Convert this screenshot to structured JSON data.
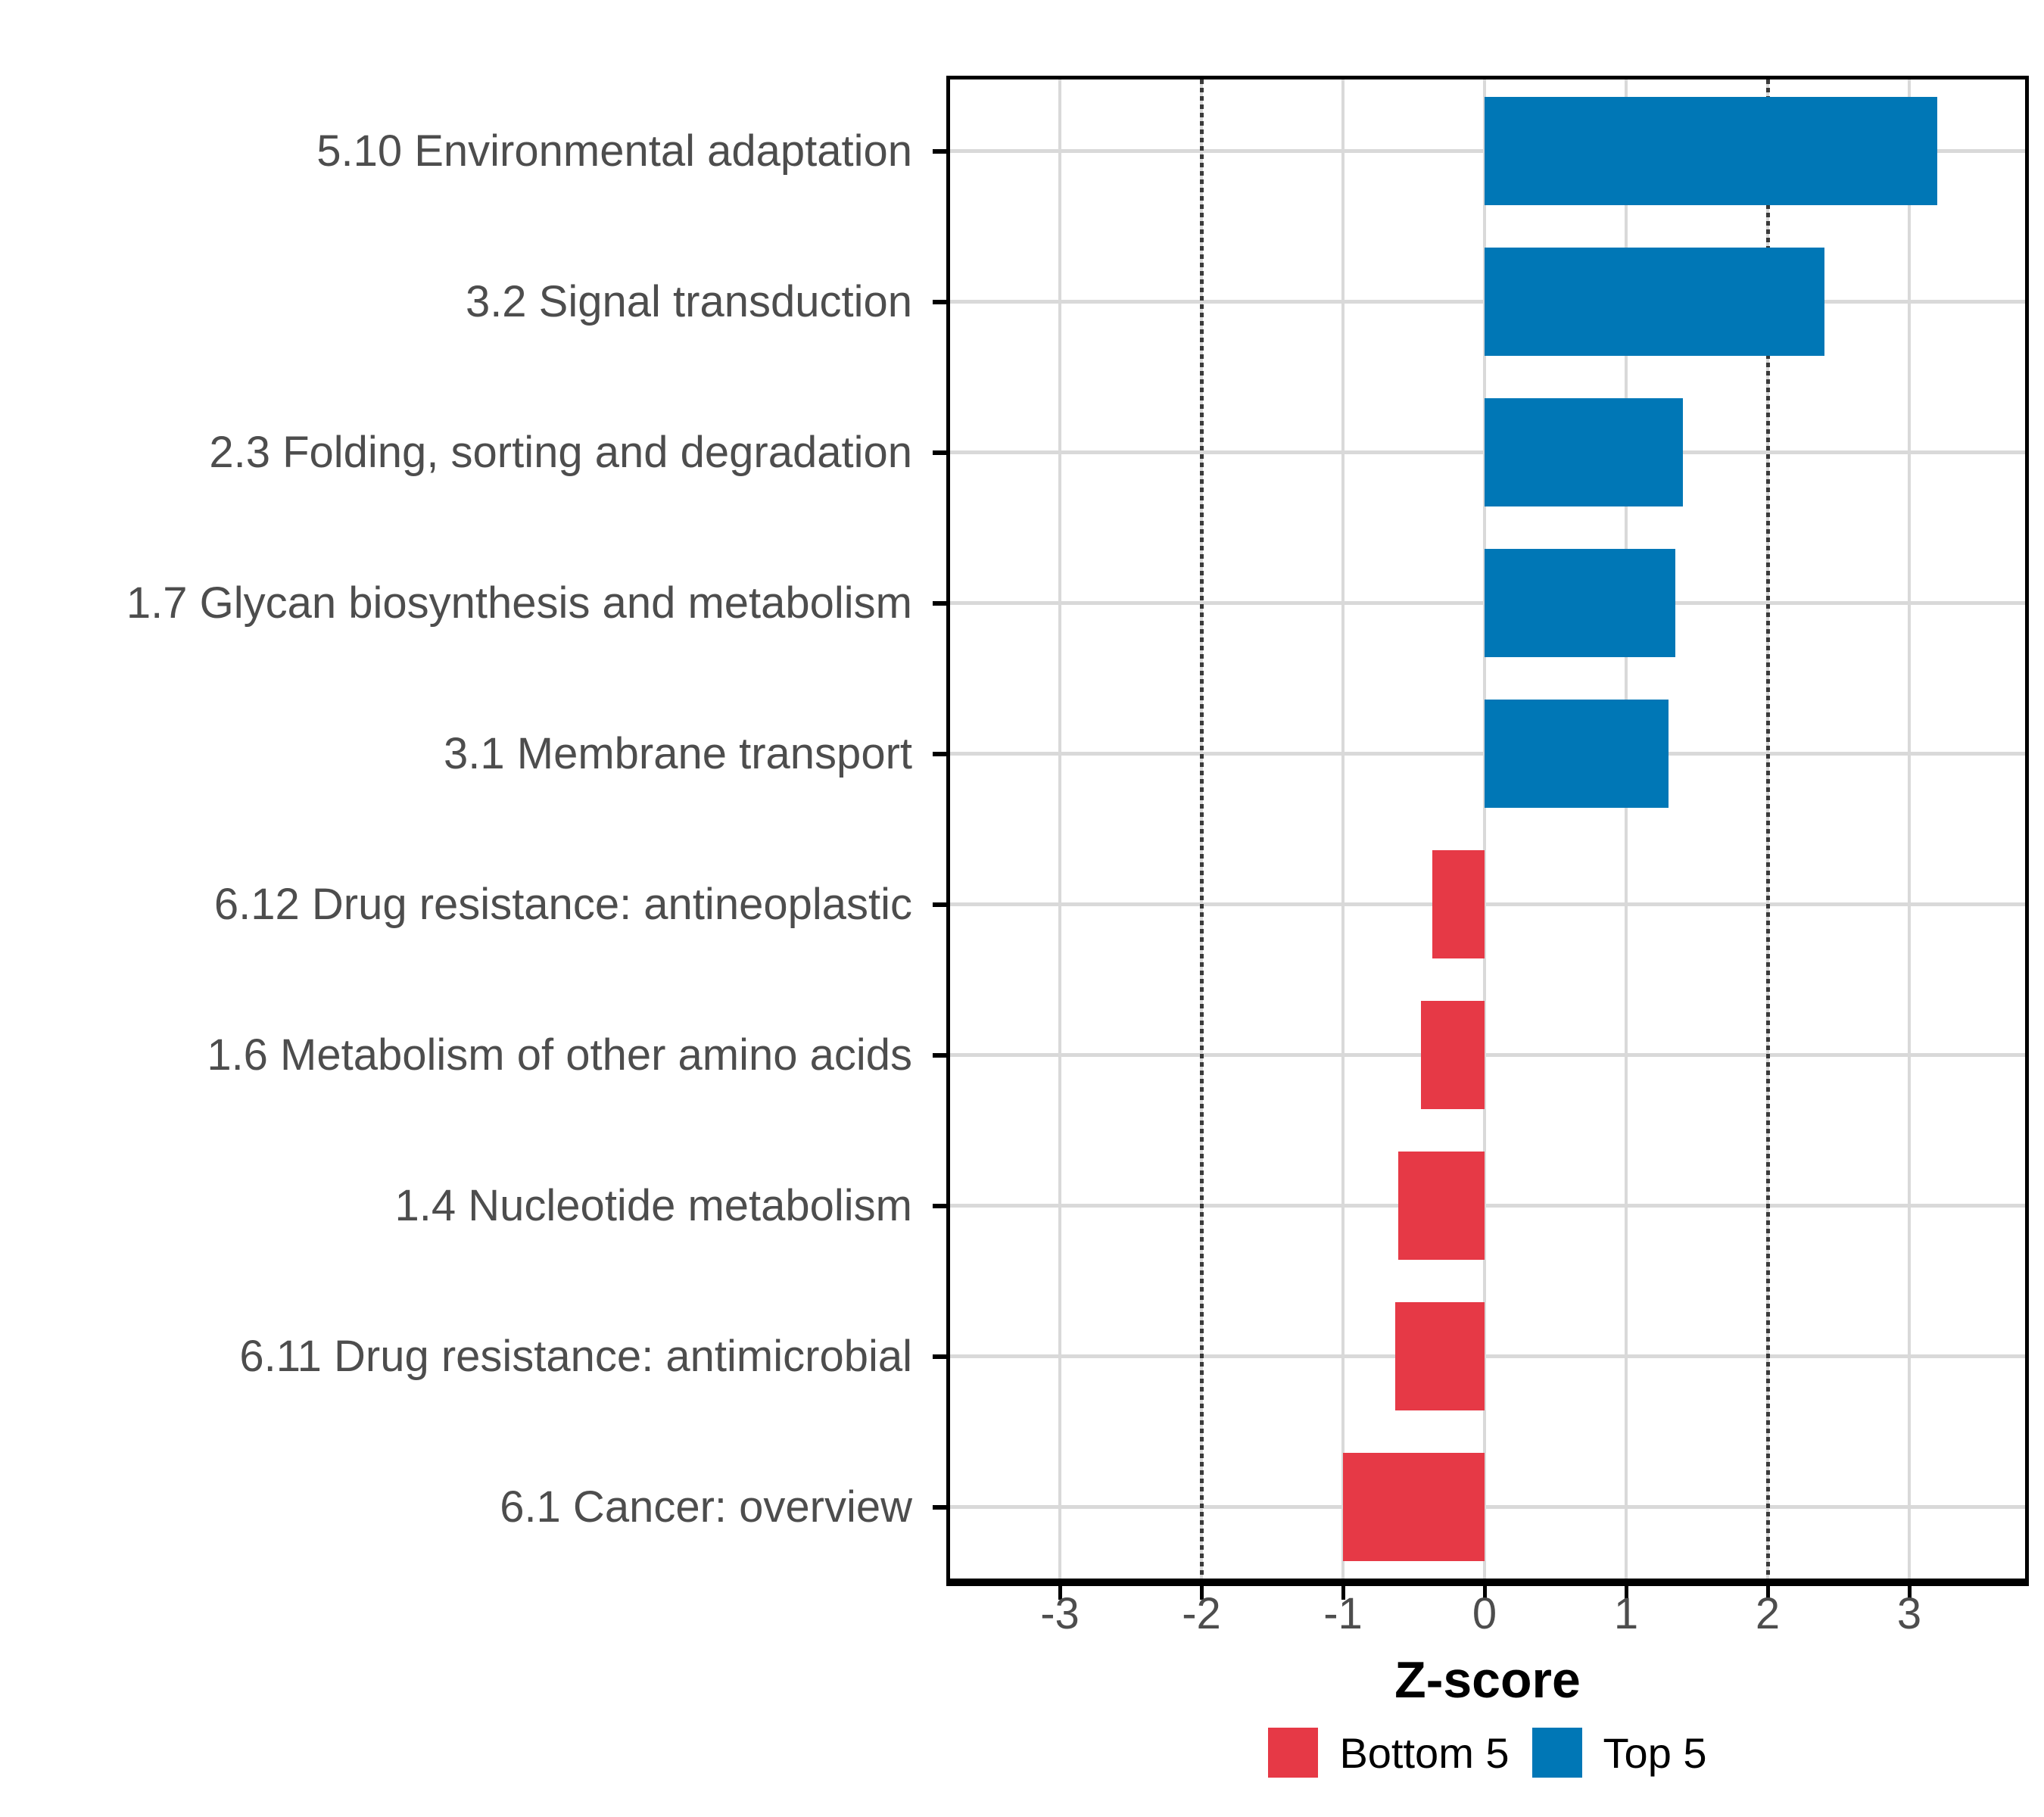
{
  "chart_data": {
    "type": "bar",
    "orientation": "horizontal",
    "title": "",
    "xlabel": "Z-score",
    "ylabel": "",
    "xlim": [
      -3.8,
      3.84
    ],
    "x_ticks": [
      -3,
      -2,
      -1,
      0,
      1,
      2,
      3
    ],
    "x_tick_labels": [
      "-3",
      "-2",
      "-1",
      "0",
      "1",
      "2",
      "3"
    ],
    "reference_lines": [
      -2,
      2
    ],
    "grid": true,
    "legend_position": "bottom",
    "categories": [
      "5.10 Environmental adaptation",
      "3.2 Signal transduction",
      "2.3 Folding, sorting and degradation",
      "1.7 Glycan biosynthesis and metabolism",
      "3.1 Membrane transport",
      "6.12 Drug resistance: antineoplastic",
      "1.6 Metabolism of other amino acids",
      "1.4 Nucleotide metabolism",
      "6.11 Drug resistance: antimicrobial",
      "6.1 Cancer: overview"
    ],
    "values": [
      3.2,
      2.4,
      1.4,
      1.35,
      1.3,
      -0.37,
      -0.45,
      -0.61,
      -0.63,
      -1.0
    ],
    "groups": [
      "Top 5",
      "Top 5",
      "Top 5",
      "Top 5",
      "Top 5",
      "Bottom 5",
      "Bottom 5",
      "Bottom 5",
      "Bottom 5",
      "Bottom 5"
    ],
    "series": [
      {
        "name": "Top 5",
        "values": [
          3.2,
          2.4,
          1.4,
          1.35,
          1.3,
          null,
          null,
          null,
          null,
          null
        ]
      },
      {
        "name": "Bottom 5",
        "values": [
          null,
          null,
          null,
          null,
          null,
          -0.37,
          -0.45,
          -0.61,
          -0.63,
          -1.0
        ]
      }
    ],
    "colors": {
      "Top 5": "#0077B6",
      "Bottom 5": "#E63946"
    },
    "legend_entries": [
      {
        "label": "Bottom 5",
        "color": "#E63946"
      },
      {
        "label": "Top 5",
        "color": "#0077B6"
      }
    ]
  },
  "style_colors": {
    "grid": "#d9d9d9",
    "reference_line": "#3a3a3a",
    "axis_text": "#4d4d4d",
    "axis_line": "#000000",
    "background": "#ffffff"
  }
}
